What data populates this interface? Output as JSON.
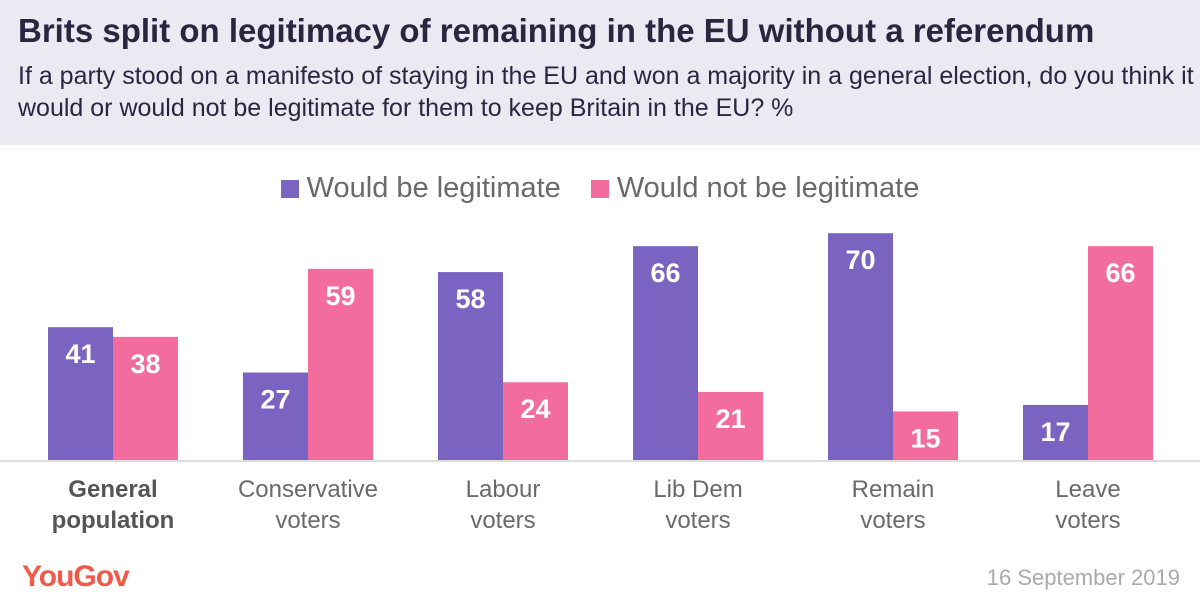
{
  "header": {
    "title": "Brits split on legitimacy of remaining in the EU without a referendum",
    "subtitle": "If a party stood on a manifesto of staying in the EU and won a majority in a general election, do you think it would or would not be legitimate for them to keep Britain in the EU? %"
  },
  "footer": {
    "logo": "YouGov",
    "date": "16 September 2019"
  },
  "chart_data": {
    "type": "bar",
    "categories": [
      [
        "General",
        "population"
      ],
      [
        "Conservative",
        "voters"
      ],
      [
        "Labour",
        "voters"
      ],
      [
        "Lib Dem",
        "voters"
      ],
      [
        "Remain",
        "voters"
      ],
      [
        "Leave",
        "voters"
      ]
    ],
    "bold_category": 0,
    "series": [
      {
        "name": "Would be legitimate",
        "color": "#7b63c1",
        "values": [
          41,
          27,
          58,
          66,
          70,
          17
        ]
      },
      {
        "name": "Would not be legitimate",
        "color": "#f26d9e",
        "values": [
          38,
          59,
          24,
          21,
          15,
          66
        ]
      }
    ],
    "ylim": [
      0,
      70
    ],
    "legend": "top-center",
    "grid": false
  }
}
